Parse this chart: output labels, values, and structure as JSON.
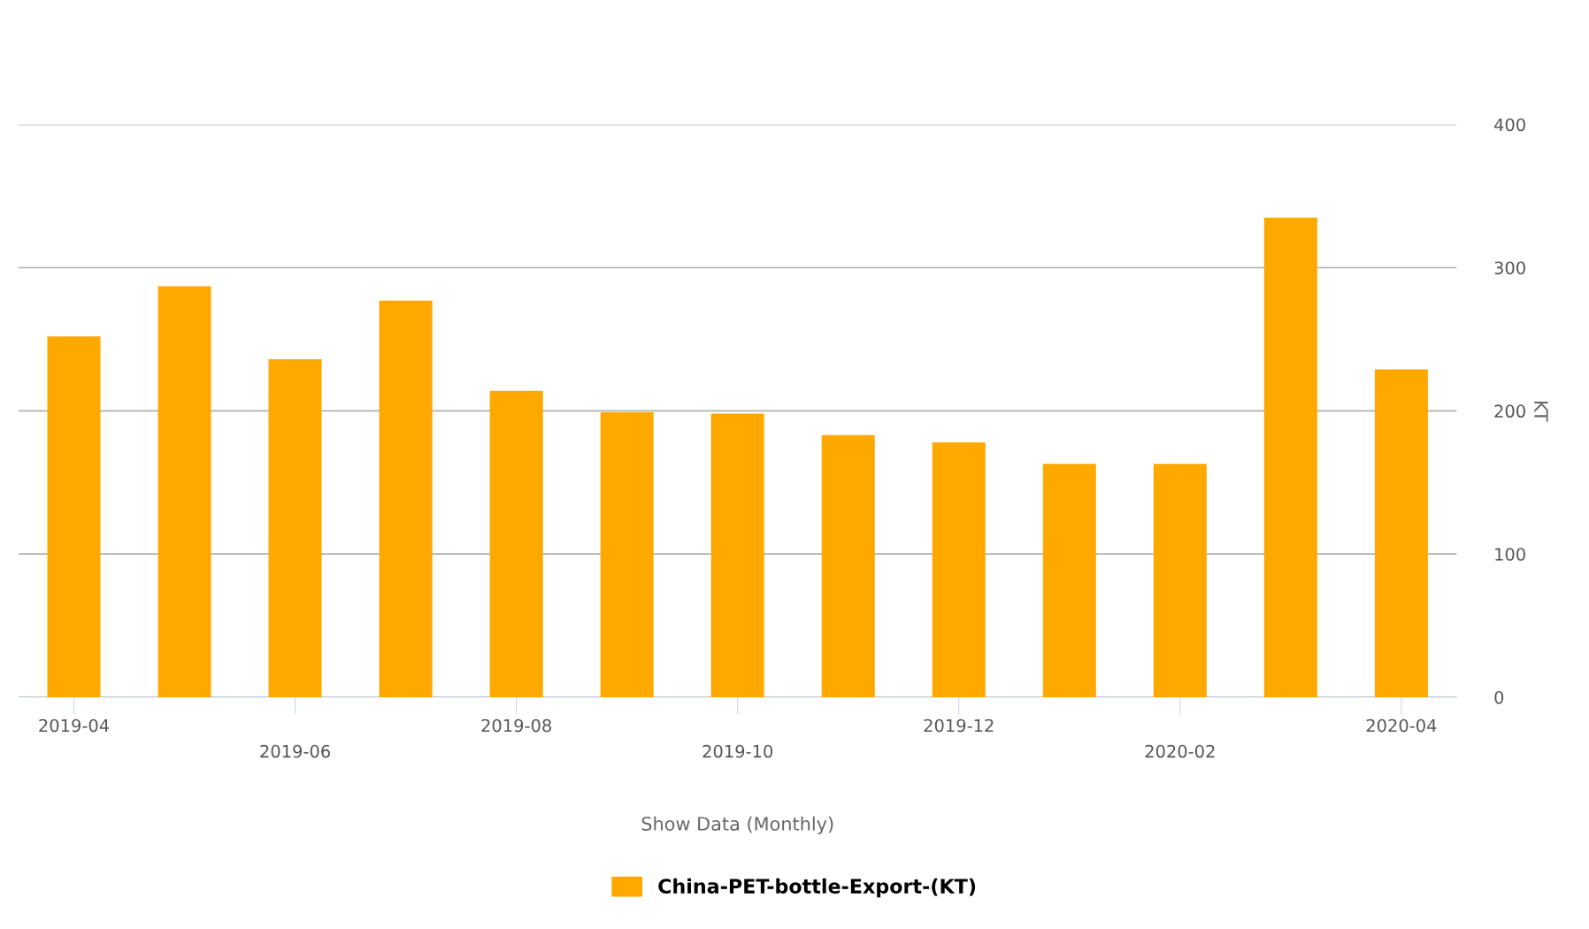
{
  "chart_data": {
    "type": "bar",
    "categories": [
      "2019-04",
      null,
      "2019-06",
      null,
      "2019-08",
      null,
      "2019-10",
      null,
      "2019-12",
      null,
      "2020-02",
      null,
      "2020-04"
    ],
    "series": [
      {
        "name": "China-PET-bottle-Export-(KT)",
        "color": "#ffa800",
        "values": [
          252,
          287,
          236,
          277,
          214,
          199,
          198,
          183,
          178,
          163,
          163,
          335,
          229
        ]
      }
    ],
    "xlabel": "Show Data (Monthly)",
    "ylabel": "KT",
    "ylim": [
      0,
      400
    ],
    "yticks": [
      0,
      100,
      200,
      300,
      400
    ],
    "grid": "y",
    "legend": "bottom"
  }
}
